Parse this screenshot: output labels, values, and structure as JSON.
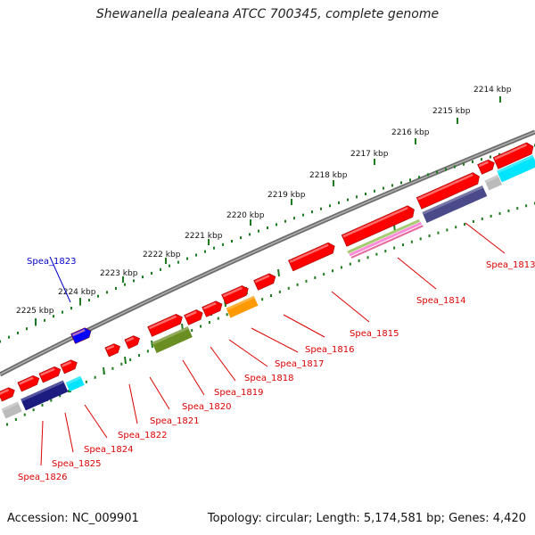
{
  "title": "Shewanella pealeana ATCC 700345, complete genome",
  "footer": {
    "accession": "Accession: NC_009901",
    "stats": "Topology: circular; Length: 5,174,581 bp; Genes: 4,420"
  },
  "scale_labels": [
    {
      "text": "2214 kbp"
    },
    {
      "text": "2215 kbp"
    },
    {
      "text": "2216 kbp"
    },
    {
      "text": "2217 kbp"
    },
    {
      "text": "2218 kbp"
    },
    {
      "text": "2219 kbp"
    },
    {
      "text": "2220 kbp"
    },
    {
      "text": "2221 kbp"
    },
    {
      "text": "2222 kbp"
    },
    {
      "text": "2223 kbp"
    },
    {
      "text": "2224 kbp"
    },
    {
      "text": "2225 kbp"
    }
  ],
  "gene_labels": [
    {
      "text": "Spea_1813",
      "color": "#dd0000"
    },
    {
      "text": "Spea_1814",
      "color": "#dd0000"
    },
    {
      "text": "Spea_1815",
      "color": "#dd0000"
    },
    {
      "text": "Spea_1816",
      "color": "#dd0000"
    },
    {
      "text": "Spea_1817",
      "color": "#dd0000"
    },
    {
      "text": "Spea_1818",
      "color": "#dd0000"
    },
    {
      "text": "Spea_1819",
      "color": "#dd0000"
    },
    {
      "text": "Spea_1820",
      "color": "#dd0000"
    },
    {
      "text": "Spea_1821",
      "color": "#dd0000"
    },
    {
      "text": "Spea_1822",
      "color": "#dd0000"
    },
    {
      "text": "Spea_1823",
      "color": "#0000cc"
    },
    {
      "text": "Spea_1824",
      "color": "#dd0000"
    },
    {
      "text": "Spea_1825",
      "color": "#dd0000"
    },
    {
      "text": "Spea_1826",
      "color": "#dd0000"
    }
  ],
  "colors": {
    "backbone": "#808080",
    "ticks": "#1e7a1e",
    "forward_gene": "#ff0000",
    "reverse_gene": "#ff0000",
    "minus_gene": "#0000ff",
    "navy_feature": "#1c1c80",
    "slate_feature": "#4a4a8a",
    "cyan_feature": "#00e5ff",
    "olive_feature": "#6b8e23",
    "orange_feature": "#ff9900",
    "grey_feature": "#bbbbbb"
  }
}
